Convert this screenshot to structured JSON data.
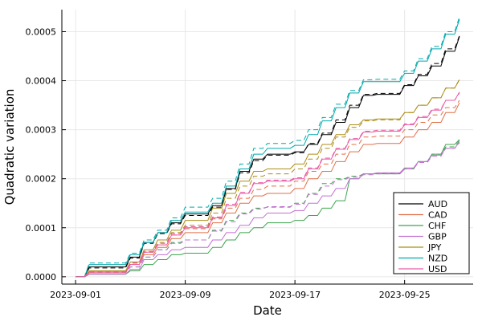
{
  "chart_data": {
    "type": "line",
    "title": "",
    "xlabel": "Date",
    "ylabel": "Quadratic variation",
    "x_ticks": [
      "2023-09-01",
      "2023-09-09",
      "2023-09-17",
      "2023-09-25"
    ],
    "y_ticks": [
      "0.0000",
      "0.0001",
      "0.0002",
      "0.0003",
      "0.0004",
      "0.0005"
    ],
    "xlim": [
      "2023-08-31",
      "2023-09-30"
    ],
    "ylim": [
      -1.5e-05,
      0.000545
    ],
    "grid": true,
    "legend_position": "bottom-right",
    "line_styles": {
      "solid": "realized",
      "dashed": "model"
    },
    "dates": [
      "2023-09-01",
      "2023-09-02",
      "2023-09-03",
      "2023-09-04",
      "2023-09-05",
      "2023-09-06",
      "2023-09-07",
      "2023-09-08",
      "2023-09-09",
      "2023-09-10",
      "2023-09-11",
      "2023-09-12",
      "2023-09-13",
      "2023-09-14",
      "2023-09-15",
      "2023-09-16",
      "2023-09-17",
      "2023-09-18",
      "2023-09-19",
      "2023-09-20",
      "2023-09-21",
      "2023-09-22",
      "2023-09-23",
      "2023-09-24",
      "2023-09-25",
      "2023-09-26",
      "2023-09-27",
      "2023-09-28",
      "2023-09-29"
    ],
    "series": [
      {
        "name": "AUD",
        "color": "#000000",
        "values": [
          0,
          2e-05,
          2e-05,
          2e-05,
          4e-05,
          7e-05,
          9e-05,
          0.00011,
          0.000128,
          0.000128,
          0.000145,
          0.00018,
          0.000215,
          0.00024,
          0.00025,
          0.00025,
          0.000255,
          0.00027,
          0.00029,
          0.000315,
          0.000345,
          0.00037,
          0.000372,
          0.000372,
          0.00039,
          0.00041,
          0.00043,
          0.00046,
          0.00049
        ],
        "model": [
          0,
          1.8e-05,
          1.8e-05,
          1.8e-05,
          3.8e-05,
          6.8e-05,
          8.8e-05,
          0.000108,
          0.000125,
          0.000125,
          0.000142,
          0.000178,
          0.000212,
          0.000237,
          0.000248,
          0.000248,
          0.000253,
          0.000272,
          0.000293,
          0.00032,
          0.00035,
          0.000372,
          0.000374,
          0.000374,
          0.000392,
          0.000413,
          0.000435,
          0.000465,
          0.000492
        ]
      },
      {
        "name": "CAD",
        "color": "#e26f46",
        "values": [
          0,
          1e-05,
          1e-05,
          1e-05,
          2.5e-05,
          4.5e-05,
          6e-05,
          7.8e-05,
          9e-05,
          9e-05,
          0.00011,
          0.00013,
          0.00015,
          0.000165,
          0.00017,
          0.00017,
          0.00018,
          0.0002,
          0.000215,
          0.000235,
          0.000255,
          0.00027,
          0.000272,
          0.000272,
          0.000285,
          0.0003,
          0.000315,
          0.000335,
          0.000355
        ],
        "model": [
          0,
          1.2e-05,
          1.2e-05,
          1.2e-05,
          2.8e-05,
          5e-05,
          6.5e-05,
          8.5e-05,
          9.8e-05,
          9.8e-05,
          0.000118,
          0.00014,
          0.00016,
          0.000178,
          0.000185,
          0.000185,
          0.000195,
          0.000215,
          0.00023,
          0.00025,
          0.00027,
          0.000285,
          0.000287,
          0.000287,
          0.0003,
          0.000315,
          0.00033,
          0.000345,
          0.00036
        ]
      },
      {
        "name": "CHF",
        "color": "#3da44d",
        "values": [
          0,
          5e-06,
          5e-06,
          5e-06,
          1.2e-05,
          2.5e-05,
          3.5e-05,
          4.5e-05,
          4.8e-05,
          4.8e-05,
          6e-05,
          7.5e-05,
          9e-05,
          0.0001,
          0.00011,
          0.00011,
          0.000115,
          0.000125,
          0.00014,
          0.000155,
          0.0002,
          0.00021,
          0.00021,
          0.00021,
          0.00022,
          0.000235,
          0.00025,
          0.00027,
          0.00028
        ],
        "model": [
          0,
          8e-06,
          8e-06,
          8e-06,
          2e-05,
          4e-05,
          5.5e-05,
          7e-05,
          7.5e-05,
          7.5e-05,
          9.5e-05,
          0.000115,
          0.00013,
          0.00014,
          0.000142,
          0.000142,
          0.00015,
          0.00017,
          0.00019,
          0.0002,
          0.000205,
          0.00021,
          0.000211,
          0.000211,
          0.00022,
          0.000235,
          0.00025,
          0.000265,
          0.000278
        ]
      },
      {
        "name": "GBP",
        "color": "#c271d2",
        "values": [
          0,
          5e-06,
          5e-06,
          5e-06,
          1.5e-05,
          3.5e-05,
          4.5e-05,
          5.5e-05,
          6e-05,
          6e-05,
          7.5e-05,
          9e-05,
          0.000105,
          0.00012,
          0.00013,
          0.00013,
          0.000135,
          0.00015,
          0.000165,
          0.00018,
          0.0002,
          0.00021,
          0.000212,
          0.000212,
          0.000222,
          0.000235,
          0.000248,
          0.000262,
          0.000275
        ],
        "model": [
          0,
          8e-06,
          8e-06,
          8e-06,
          2e-05,
          4e-05,
          5.5e-05,
          6.8e-05,
          7.5e-05,
          7.5e-05,
          9.3e-05,
          0.000112,
          0.000128,
          0.000138,
          0.000143,
          0.000143,
          0.000148,
          0.000168,
          0.000185,
          0.000198,
          0.000203,
          0.000208,
          0.00021,
          0.00021,
          0.00022,
          0.000233,
          0.000246,
          0.000262,
          0.000273
        ]
      },
      {
        "name": "JPY",
        "color": "#ac8d18",
        "values": [
          0,
          1.2e-05,
          1.2e-05,
          1.2e-05,
          3e-05,
          5.5e-05,
          7.5e-05,
          9.5e-05,
          0.000115,
          0.000115,
          0.00014,
          0.00017,
          0.000195,
          0.000215,
          0.00022,
          0.00022,
          0.00023,
          0.00025,
          0.00027,
          0.00029,
          0.00031,
          0.00032,
          0.000322,
          0.000322,
          0.000335,
          0.00035,
          0.000365,
          0.000385,
          0.000402
        ],
        "model": [
          0,
          1e-05,
          1e-05,
          1e-05,
          2.8e-05,
          5e-05,
          7e-05,
          9e-05,
          0.000105,
          0.000105,
          0.00013,
          0.00016,
          0.000185,
          0.000205,
          0.00021,
          0.00021,
          0.00022,
          0.00024,
          0.000262,
          0.000285,
          0.000305,
          0.000318,
          0.00032,
          0.00032,
          0.000335,
          0.00035,
          0.000365,
          0.000385,
          0.000403
        ]
      },
      {
        "name": "NZD",
        "color": "#00a9ad",
        "values": [
          0,
          2.5e-05,
          2.5e-05,
          2.5e-05,
          4.5e-05,
          7e-05,
          9e-05,
          0.000115,
          0.000132,
          0.000132,
          0.00015,
          0.000185,
          0.00022,
          0.00025,
          0.000262,
          0.000262,
          0.000268,
          0.00029,
          0.000318,
          0.000345,
          0.000375,
          0.000398,
          0.000398,
          0.000398,
          0.000415,
          0.00044,
          0.000465,
          0.000495,
          0.000525
        ],
        "model": [
          0,
          2.8e-05,
          2.8e-05,
          2.8e-05,
          4.8e-05,
          7.5e-05,
          9.5e-05,
          0.00012,
          0.000142,
          0.000142,
          0.00016,
          0.000195,
          0.00023,
          0.000262,
          0.000272,
          0.000272,
          0.000278,
          0.0003,
          0.000325,
          0.000352,
          0.00038,
          0.000402,
          0.000403,
          0.000403,
          0.00042,
          0.000445,
          0.00047,
          0.0005,
          0.00053
        ]
      },
      {
        "name": "USD",
        "color": "#ea5ba5",
        "values": [
          0,
          8e-06,
          8e-06,
          8e-06,
          2.5e-05,
          5e-05,
          6.5e-05,
          8.5e-05,
          0.0001,
          0.0001,
          0.00012,
          0.000145,
          0.00017,
          0.00019,
          0.000195,
          0.000195,
          0.0002,
          0.00022,
          0.00024,
          0.00026,
          0.00028,
          0.000295,
          0.000297,
          0.000297,
          0.00031,
          0.000325,
          0.00034,
          0.00036,
          0.000377
        ],
        "model": [
          0,
          1e-05,
          1e-05,
          1e-05,
          2.8e-05,
          5.2e-05,
          6.8e-05,
          8.8e-05,
          0.000102,
          0.000102,
          0.000122,
          0.000148,
          0.000172,
          0.000192,
          0.000197,
          0.000197,
          0.000202,
          0.000222,
          0.000242,
          0.000262,
          0.000282,
          0.000297,
          0.000299,
          0.000299,
          0.000312,
          0.000327,
          0.000342,
          0.00036,
          0.000375
        ]
      }
    ]
  }
}
